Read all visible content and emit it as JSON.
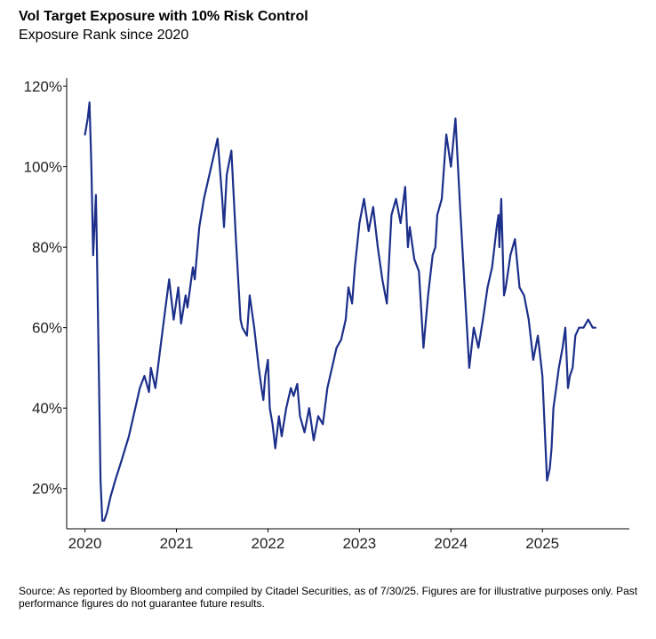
{
  "chart_data": {
    "type": "line",
    "title": "Vol Target Exposure with 10% Risk Control",
    "subtitle": "Exposure Rank since 2020",
    "ylim": [
      10,
      122
    ],
    "xlim": [
      2019.8,
      2025.95
    ],
    "y_ticks": [
      20,
      40,
      60,
      80,
      100,
      120
    ],
    "y_tick_labels": [
      "20%",
      "40%",
      "60%",
      "80%",
      "100%",
      "120%"
    ],
    "x_ticks": [
      2020,
      2021,
      2022,
      2023,
      2024,
      2025
    ],
    "x_tick_labels": [
      "2020",
      "2021",
      "2022",
      "2023",
      "2024",
      "2025"
    ],
    "grid": false,
    "series": [
      {
        "color": "#1c2f8a",
        "x": [
          2020.0,
          2020.03,
          2020.05,
          2020.07,
          2020.09,
          2020.12,
          2020.13,
          2020.15,
          2020.17,
          2020.19,
          2020.21,
          2020.24,
          2020.28,
          2020.33,
          2020.4,
          2020.48,
          2020.55,
          2020.6,
          2020.65,
          2020.7,
          2020.72,
          2020.77,
          2020.83,
          2020.88,
          2020.92,
          2020.97,
          2021.02,
          2021.05,
          2021.1,
          2021.12,
          2021.18,
          2021.2,
          2021.25,
          2021.3,
          2021.38,
          2021.45,
          2021.5,
          2021.52,
          2021.55,
          2021.6,
          2021.65,
          2021.68,
          2021.7,
          2021.72,
          2021.77,
          2021.8,
          2021.85,
          2021.9,
          2021.93,
          2021.95,
          2021.97,
          2022.0,
          2022.02,
          2022.05,
          2022.08,
          2022.12,
          2022.15,
          2022.2,
          2022.25,
          2022.28,
          2022.32,
          2022.35,
          2022.4,
          2022.45,
          2022.5,
          2022.55,
          2022.6,
          2022.65,
          2022.7,
          2022.75,
          2022.8,
          2022.85,
          2022.88,
          2022.92,
          2022.95,
          2023.0,
          2023.05,
          2023.1,
          2023.15,
          2023.2,
          2023.25,
          2023.3,
          2023.35,
          2023.4,
          2023.45,
          2023.5,
          2023.53,
          2023.55,
          2023.6,
          2023.65,
          2023.7,
          2023.75,
          2023.8,
          2023.83,
          2023.85,
          2023.9,
          2023.95,
          2024.0,
          2024.05,
          2024.1,
          2024.15,
          2024.2,
          2024.25,
          2024.3,
          2024.35,
          2024.4,
          2024.45,
          2024.5,
          2024.52,
          2024.53,
          2024.55,
          2024.58,
          2024.6,
          2024.65,
          2024.7,
          2024.75,
          2024.8,
          2024.85,
          2024.9,
          2024.95,
          2025.0,
          2025.05,
          2025.08,
          2025.1,
          2025.12,
          2025.15,
          2025.18,
          2025.22,
          2025.25,
          2025.28,
          2025.3,
          2025.33,
          2025.36,
          2025.4,
          2025.45,
          2025.5,
          2025.55,
          2025.58
        ],
        "y": [
          108,
          112,
          116,
          100,
          78,
          93,
          80,
          52,
          22,
          12,
          12,
          14,
          18,
          22,
          27,
          33,
          40,
          45,
          48,
          44,
          50,
          45,
          56,
          65,
          72,
          62,
          70,
          61,
          68,
          65,
          75,
          72,
          85,
          92,
          100,
          107,
          92,
          85,
          98,
          104,
          82,
          70,
          62,
          60,
          58,
          68,
          60,
          50,
          45,
          42,
          48,
          52,
          40,
          36,
          30,
          38,
          33,
          40,
          45,
          43,
          46,
          38,
          34,
          40,
          32,
          38,
          36,
          45,
          50,
          55,
          57,
          62,
          70,
          66,
          75,
          86,
          92,
          84,
          90,
          80,
          72,
          66,
          88,
          92,
          86,
          95,
          80,
          85,
          77,
          74,
          55,
          68,
          78,
          80,
          88,
          92,
          108,
          100,
          112,
          90,
          70,
          50,
          60,
          55,
          62,
          70,
          75,
          85,
          88,
          80,
          92,
          68,
          70,
          78,
          82,
          70,
          68,
          62,
          52,
          58,
          48,
          22,
          25,
          30,
          40,
          45,
          50,
          55,
          60,
          45,
          48,
          50,
          58,
          60,
          60,
          62,
          60,
          60
        ],
        "values_note_x": "fractional years",
        "values_note_y": "percent"
      }
    ]
  },
  "source": "Source: As reported by Bloomberg and compiled by Citadel Securities, as of 7/30/25. Figures are for illustrative purposes only. Past performance figures do not guarantee future results."
}
